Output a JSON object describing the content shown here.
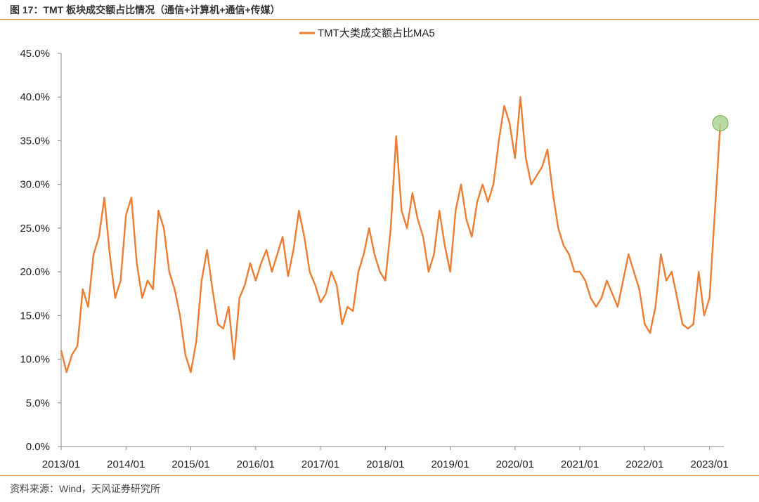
{
  "figure": {
    "title": "图 17：TMT 板块成交额占比情况（通信+计算机+通信+传媒）",
    "source": "资料来源：Wind，天风证券研究所"
  },
  "colors": {
    "line": "#ed7d31",
    "rule": "#e8873c",
    "marker_fill": "#a9d18e",
    "marker_stroke": "#70ad47"
  },
  "chart_data": {
    "type": "line",
    "title": "",
    "xlabel": "",
    "ylabel": "",
    "legend": {
      "position": "top-center"
    },
    "grid": false,
    "ylim": [
      0,
      0.45
    ],
    "yticks": [
      "0.0%",
      "5.0%",
      "10.0%",
      "15.0%",
      "20.0%",
      "25.0%",
      "30.0%",
      "35.0%",
      "40.0%",
      "45.0%"
    ],
    "xticks": [
      "2013/01",
      "2014/01",
      "2015/01",
      "2016/01",
      "2017/01",
      "2018/01",
      "2019/01",
      "2020/01",
      "2021/01",
      "2022/01",
      "2023/01"
    ],
    "x_range": [
      "2013/01",
      "2023/03"
    ],
    "series": [
      {
        "name": "TMT大类成交额占比MA5",
        "points": [
          [
            "2013/01",
            0.11
          ],
          [
            "2013/02",
            0.085
          ],
          [
            "2013/03",
            0.105
          ],
          [
            "2013/04",
            0.115
          ],
          [
            "2013/05",
            0.18
          ],
          [
            "2013/06",
            0.16
          ],
          [
            "2013/07",
            0.22
          ],
          [
            "2013/08",
            0.24
          ],
          [
            "2013/09",
            0.285
          ],
          [
            "2013/10",
            0.22
          ],
          [
            "2013/11",
            0.17
          ],
          [
            "2013/12",
            0.19
          ],
          [
            "2014/01",
            0.265
          ],
          [
            "2014/02",
            0.285
          ],
          [
            "2014/03",
            0.21
          ],
          [
            "2014/04",
            0.17
          ],
          [
            "2014/05",
            0.19
          ],
          [
            "2014/06",
            0.18
          ],
          [
            "2014/07",
            0.27
          ],
          [
            "2014/08",
            0.25
          ],
          [
            "2014/09",
            0.2
          ],
          [
            "2014/10",
            0.18
          ],
          [
            "2014/11",
            0.15
          ],
          [
            "2014/12",
            0.105
          ],
          [
            "2015/01",
            0.085
          ],
          [
            "2015/02",
            0.12
          ],
          [
            "2015/03",
            0.19
          ],
          [
            "2015/04",
            0.225
          ],
          [
            "2015/05",
            0.18
          ],
          [
            "2015/06",
            0.14
          ],
          [
            "2015/07",
            0.135
          ],
          [
            "2015/08",
            0.16
          ],
          [
            "2015/09",
            0.1
          ],
          [
            "2015/10",
            0.17
          ],
          [
            "2015/11",
            0.185
          ],
          [
            "2015/12",
            0.21
          ],
          [
            "2016/01",
            0.19
          ],
          [
            "2016/02",
            0.21
          ],
          [
            "2016/03",
            0.225
          ],
          [
            "2016/04",
            0.2
          ],
          [
            "2016/05",
            0.22
          ],
          [
            "2016/06",
            0.24
          ],
          [
            "2016/07",
            0.195
          ],
          [
            "2016/08",
            0.225
          ],
          [
            "2016/09",
            0.27
          ],
          [
            "2016/10",
            0.24
          ],
          [
            "2016/11",
            0.2
          ],
          [
            "2016/12",
            0.185
          ],
          [
            "2017/01",
            0.165
          ],
          [
            "2017/02",
            0.175
          ],
          [
            "2017/03",
            0.2
          ],
          [
            "2017/04",
            0.185
          ],
          [
            "2017/05",
            0.14
          ],
          [
            "2017/06",
            0.16
          ],
          [
            "2017/07",
            0.155
          ],
          [
            "2017/08",
            0.2
          ],
          [
            "2017/09",
            0.22
          ],
          [
            "2017/10",
            0.25
          ],
          [
            "2017/11",
            0.22
          ],
          [
            "2017/12",
            0.2
          ],
          [
            "2018/01",
            0.19
          ],
          [
            "2018/02",
            0.25
          ],
          [
            "2018/03",
            0.355
          ],
          [
            "2018/04",
            0.27
          ],
          [
            "2018/05",
            0.25
          ],
          [
            "2018/06",
            0.29
          ],
          [
            "2018/07",
            0.26
          ],
          [
            "2018/08",
            0.24
          ],
          [
            "2018/09",
            0.2
          ],
          [
            "2018/10",
            0.22
          ],
          [
            "2018/11",
            0.27
          ],
          [
            "2018/12",
            0.23
          ],
          [
            "2019/01",
            0.2
          ],
          [
            "2019/02",
            0.27
          ],
          [
            "2019/03",
            0.3
          ],
          [
            "2019/04",
            0.26
          ],
          [
            "2019/05",
            0.24
          ],
          [
            "2019/06",
            0.28
          ],
          [
            "2019/07",
            0.3
          ],
          [
            "2019/08",
            0.28
          ],
          [
            "2019/09",
            0.3
          ],
          [
            "2019/10",
            0.35
          ],
          [
            "2019/11",
            0.39
          ],
          [
            "2019/12",
            0.37
          ],
          [
            "2020/01",
            0.33
          ],
          [
            "2020/02",
            0.4
          ],
          [
            "2020/03",
            0.33
          ],
          [
            "2020/04",
            0.3
          ],
          [
            "2020/05",
            0.31
          ],
          [
            "2020/06",
            0.32
          ],
          [
            "2020/07",
            0.34
          ],
          [
            "2020/08",
            0.29
          ],
          [
            "2020/09",
            0.25
          ],
          [
            "2020/10",
            0.23
          ],
          [
            "2020/11",
            0.22
          ],
          [
            "2020/12",
            0.2
          ],
          [
            "2021/01",
            0.2
          ],
          [
            "2021/02",
            0.19
          ],
          [
            "2021/03",
            0.17
          ],
          [
            "2021/04",
            0.16
          ],
          [
            "2021/05",
            0.17
          ],
          [
            "2021/06",
            0.19
          ],
          [
            "2021/07",
            0.175
          ],
          [
            "2021/08",
            0.16
          ],
          [
            "2021/09",
            0.19
          ],
          [
            "2021/10",
            0.22
          ],
          [
            "2021/11",
            0.2
          ],
          [
            "2021/12",
            0.18
          ],
          [
            "2022/01",
            0.14
          ],
          [
            "2022/02",
            0.13
          ],
          [
            "2022/03",
            0.16
          ],
          [
            "2022/04",
            0.22
          ],
          [
            "2022/05",
            0.19
          ],
          [
            "2022/06",
            0.2
          ],
          [
            "2022/07",
            0.17
          ],
          [
            "2022/08",
            0.14
          ],
          [
            "2022/09",
            0.135
          ],
          [
            "2022/10",
            0.14
          ],
          [
            "2022/11",
            0.2
          ],
          [
            "2022/12",
            0.15
          ],
          [
            "2023/01",
            0.17
          ],
          [
            "2023/02",
            0.27
          ],
          [
            "2023/03",
            0.37
          ]
        ]
      }
    ],
    "highlight": {
      "x": "2023/03",
      "y": 0.37
    }
  }
}
